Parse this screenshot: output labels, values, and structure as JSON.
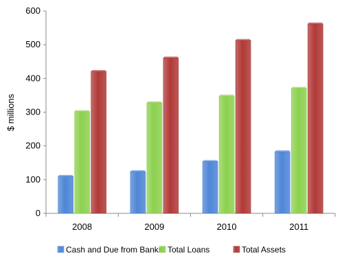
{
  "chart_data": {
    "type": "bar",
    "title": "",
    "xlabel": "",
    "ylabel": "$ millions",
    "ylim": [
      0,
      600
    ],
    "yticks": [
      0,
      100,
      200,
      300,
      400,
      500,
      600
    ],
    "grid": false,
    "legend_position": "bottom",
    "categories": [
      "2008",
      "2009",
      "2010",
      "2011"
    ],
    "series": [
      {
        "name": "Cash and Due from Banks",
        "color": "#4f86d6",
        "values": [
          110,
          124,
          154,
          183
        ]
      },
      {
        "name": "Total Loans",
        "color": "#8dd14f",
        "values": [
          302,
          328,
          348,
          371
        ]
      },
      {
        "name": "Total Assets",
        "color": "#b03a38",
        "values": [
          421,
          461,
          513,
          562
        ]
      }
    ]
  }
}
